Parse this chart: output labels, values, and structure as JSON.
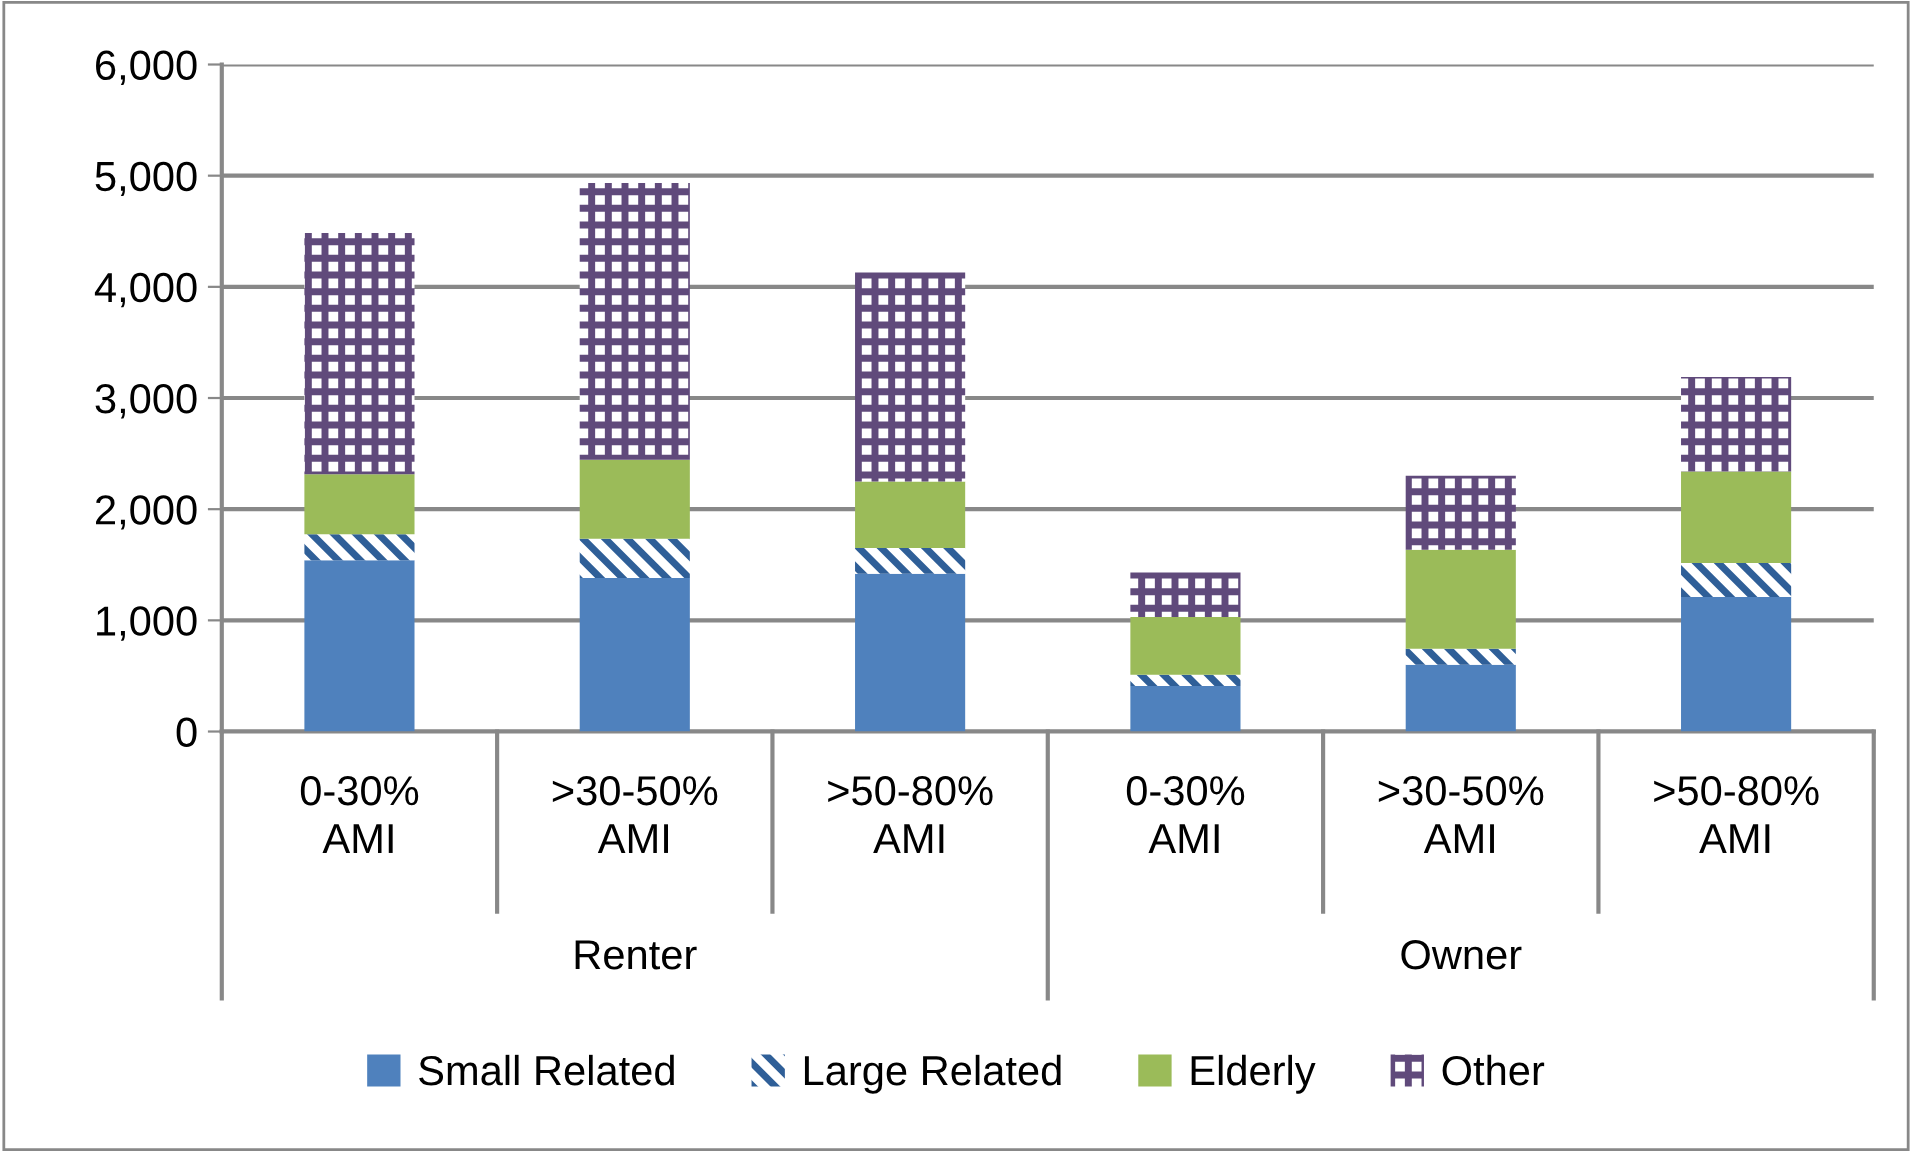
{
  "chart_data": {
    "type": "bar",
    "stacked": true,
    "categories": [
      "0-30%\nAMI",
      ">30-50%\nAMI",
      ">50-80%\nAMI",
      "0-30%\nAMI",
      ">30-50%\nAMI",
      ">50-80%\nAMI"
    ],
    "series": [
      {
        "name": "Small Related",
        "color": "#4f81bd",
        "values": [
          1540,
          1380,
          1420,
          410,
          600,
          1210
        ]
      },
      {
        "name": "Large Related",
        "color": "#2f5f98",
        "values": [
          235,
          355,
          230,
          100,
          145,
          305
        ]
      },
      {
        "name": "Elderly",
        "color": "#9bbb59",
        "values": [
          540,
          710,
          600,
          520,
          890,
          825
        ]
      },
      {
        "name": "Other",
        "color": "#604a7b",
        "values": [
          2170,
          2490,
          1880,
          400,
          665,
          850
        ]
      }
    ],
    "annotations": [
      "Renter",
      "Owner"
    ],
    "ylim": [
      0,
      6000
    ],
    "yticks": [
      {
        "value": 0,
        "label": "0"
      },
      {
        "value": 1000,
        "label": "1,000"
      },
      {
        "value": 2000,
        "label": "2,000"
      },
      {
        "value": 3000,
        "label": "3,000"
      },
      {
        "value": 4000,
        "label": "4,000"
      },
      {
        "value": 5000,
        "label": "5,000"
      },
      {
        "value": 6000,
        "label": "6,000"
      }
    ],
    "grid": "y",
    "legend": "bottom"
  }
}
